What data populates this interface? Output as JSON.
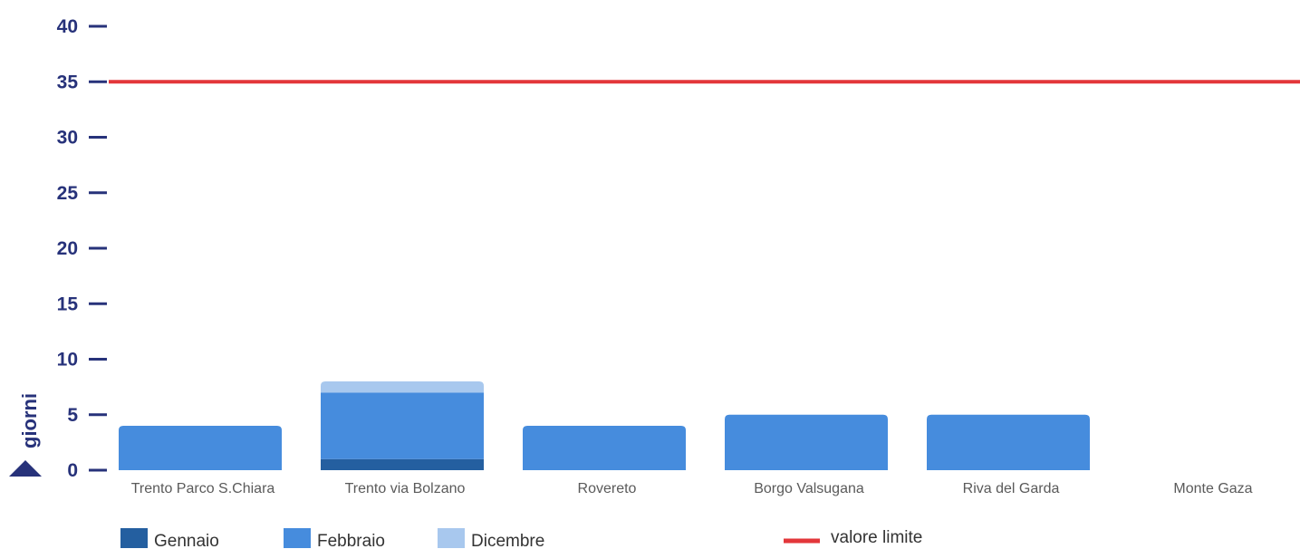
{
  "colors": {
    "axis": "#27327a",
    "gennaio": "#245fa0",
    "febbraio": "#468cdd",
    "dicembre": "#a8c8ee",
    "limit": "#e3363a",
    "xtick": "#5a5a5a",
    "legend_text": "#333333"
  },
  "chart_data": {
    "type": "bar",
    "stacked": true,
    "categories": [
      "Trento Parco S.Chiara",
      "Trento via Bolzano",
      "Rovereto",
      "Borgo Valsugana",
      "Riva del Garda",
      "Monte Gaza"
    ],
    "series": [
      {
        "name": "Gennaio",
        "values": [
          0,
          1,
          0,
          0,
          0,
          0
        ]
      },
      {
        "name": "Febbraio",
        "values": [
          4,
          6,
          4,
          5,
          5,
          0
        ]
      },
      {
        "name": "Dicembre",
        "values": [
          0,
          1,
          0,
          0,
          0,
          0
        ]
      }
    ],
    "limit": {
      "name": "valore limite",
      "value": 35
    },
    "ylabel": "giorni",
    "ylim": [
      0,
      40
    ],
    "yticks": [
      0,
      5,
      10,
      15,
      20,
      25,
      30,
      35,
      40
    ],
    "legend_position": "bottom"
  }
}
